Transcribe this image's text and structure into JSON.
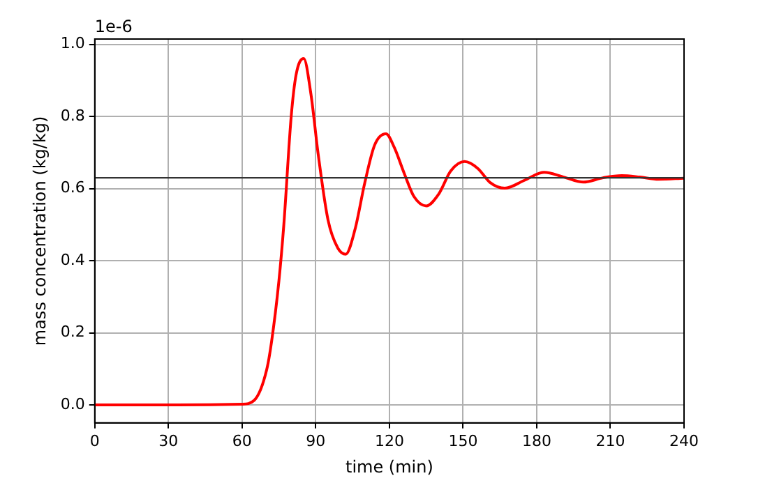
{
  "chart_data": {
    "type": "line",
    "xlabel": "time (min)",
    "ylabel": "mass concentration (kg/kg)",
    "annotations": [
      "1e-6"
    ],
    "x": [
      0,
      30,
      60,
      65,
      70,
      72,
      75,
      77,
      80,
      82,
      85.1,
      88,
      91,
      95,
      99,
      102.2,
      106,
      110,
      114,
      118.6,
      122,
      126,
      130,
      135,
      140,
      145,
      150.6,
      156,
      161,
      167,
      175,
      183,
      191,
      199,
      207,
      214.6,
      222,
      229.6,
      240
    ],
    "series": [
      {
        "color": "#ff0000",
        "values": [
          0,
          0,
          0.002,
          0.013,
          0.097,
          0.175,
          0.344,
          0.5,
          0.8,
          0.916,
          0.961,
          0.864,
          0.695,
          0.513,
          0.435,
          0.418,
          0.487,
          0.617,
          0.721,
          0.752,
          0.714,
          0.643,
          0.578,
          0.552,
          0.584,
          0.649,
          0.675,
          0.656,
          0.617,
          0.601,
          0.623,
          0.645,
          0.632,
          0.618,
          0.63,
          0.636,
          0.632,
          0.626,
          0.629
        ]
      }
    ],
    "xlim": [
      0,
      240
    ],
    "xticks": [
      0,
      30,
      60,
      90,
      120,
      150,
      180,
      210,
      240
    ],
    "ylim": [
      -0.05,
      1.015
    ],
    "yticks": [
      {
        "value": 0,
        "label": "0.0"
      },
      {
        "value": 0.2,
        "label": "0.2"
      },
      {
        "value": 0.4,
        "label": "0.4"
      },
      {
        "value": 0.6,
        "label": "0.6"
      },
      {
        "value": 0.8,
        "label": "0.8"
      },
      {
        "value": 1,
        "label": "1.0"
      }
    ],
    "ref_lines": [
      {
        "axis": "y",
        "value": 0.63,
        "color": "#333333"
      }
    ],
    "grid": true,
    "legend": false,
    "marker": "none",
    "line_style": "solid"
  }
}
